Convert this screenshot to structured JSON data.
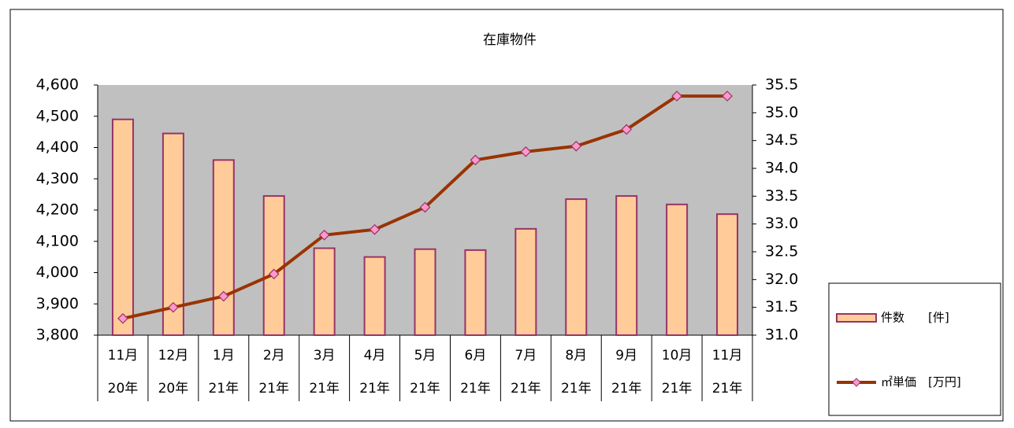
{
  "chart_data": {
    "type": "bar-line",
    "title": "在庫物件",
    "categories": [
      [
        "11月",
        "20年"
      ],
      [
        "12月",
        "20年"
      ],
      [
        "1月",
        "21年"
      ],
      [
        "2月",
        "21年"
      ],
      [
        "3月",
        "21年"
      ],
      [
        "4月",
        "21年"
      ],
      [
        "5月",
        "21年"
      ],
      [
        "6月",
        "21年"
      ],
      [
        "7月",
        "21年"
      ],
      [
        "8月",
        "21年"
      ],
      [
        "9月",
        "21年"
      ],
      [
        "10月",
        "21年"
      ],
      [
        "11月",
        "21年"
      ]
    ],
    "series": [
      {
        "name": "件数　　[件]",
        "type": "bar",
        "color": "#ffcc99",
        "edge_color": "#993366",
        "values": [
          4490,
          4445,
          4360,
          4245,
          4078,
          4050,
          4075,
          4072,
          4140,
          4235,
          4245,
          4218,
          4187
        ]
      },
      {
        "name": "㎡単価　[万円]",
        "type": "line",
        "axis": "y2",
        "color": "#993300",
        "marker_color": "#ff99cc",
        "values": [
          31.3,
          31.5,
          31.7,
          32.1,
          32.8,
          32.9,
          33.3,
          34.15,
          34.3,
          34.4,
          34.7,
          35.3,
          35.3
        ]
      }
    ],
    "ylim": [
      3800,
      4600
    ],
    "yticks": [
      {
        "value": 3800,
        "label": "3,800"
      },
      {
        "value": 3900,
        "label": "3,900"
      },
      {
        "value": 4000,
        "label": "4,000"
      },
      {
        "value": 4100,
        "label": "4,100"
      },
      {
        "value": 4200,
        "label": "4,200"
      },
      {
        "value": 4300,
        "label": "4,300"
      },
      {
        "value": 4400,
        "label": "4,400"
      },
      {
        "value": 4500,
        "label": "4,500"
      },
      {
        "value": 4600,
        "label": "4,600"
      }
    ],
    "y2lim": [
      31,
      35.5
    ],
    "y2ticks": [
      {
        "value": 31,
        "label": "31.0"
      },
      31.5,
      {
        "value": 32,
        "label": "32.0"
      },
      32.5,
      {
        "value": 33,
        "label": "33.0"
      },
      33.5,
      {
        "value": 34,
        "label": "34.0"
      },
      34.5,
      {
        "value": 35,
        "label": "35.0"
      },
      35.5
    ],
    "grid": false,
    "legend": "right",
    "plot_background": "#c0c0c0"
  }
}
